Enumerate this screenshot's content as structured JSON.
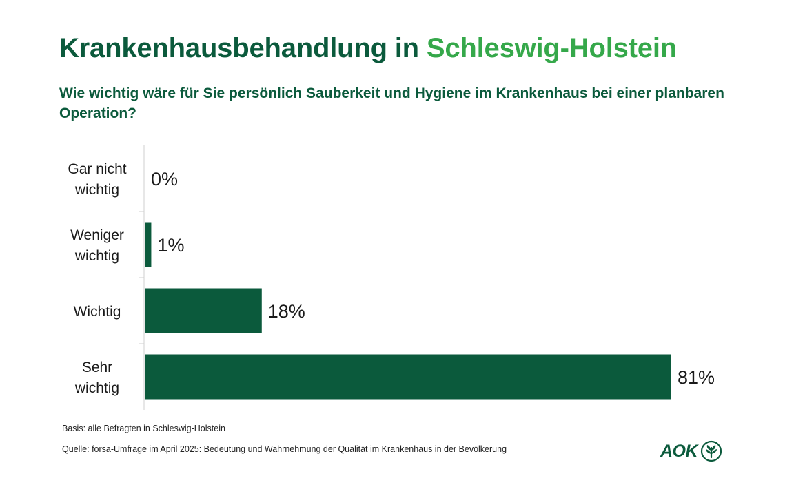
{
  "title": {
    "part1": "Krankenhausbehandlung in ",
    "part2": "Schleswig-Holstein"
  },
  "subtitle": "Wie wichtig wäre für Sie persönlich Sauberkeit und Hygiene im Krankenhaus bei einer planbaren Operation?",
  "chart_data": {
    "type": "bar",
    "orientation": "horizontal",
    "categories": [
      [
        "Gar nicht",
        "wichtig"
      ],
      [
        "Weniger",
        "wichtig"
      ],
      [
        "Wichtig"
      ],
      [
        "Sehr",
        "wichtig"
      ]
    ],
    "values": [
      0,
      1,
      18,
      81
    ],
    "value_labels": [
      "0%",
      "1%",
      "18%",
      "81%"
    ],
    "xlim": [
      0,
      81
    ],
    "grid": false,
    "legend": "none",
    "bar_color": "#0b5a3c"
  },
  "footer": {
    "basis": "Basis: alle Befragten in Schleswig-Holstein",
    "source": "Quelle: forsa-Umfrage im April 2025: Bedeutung und Wahrnehmung der Qualität im Krankenhaus in der Bevölkerung"
  },
  "logo": {
    "text": "AOK",
    "icon": "aok-tree-icon"
  },
  "colors": {
    "dark_green": "#0b5a3c",
    "light_green": "#35a84a"
  }
}
